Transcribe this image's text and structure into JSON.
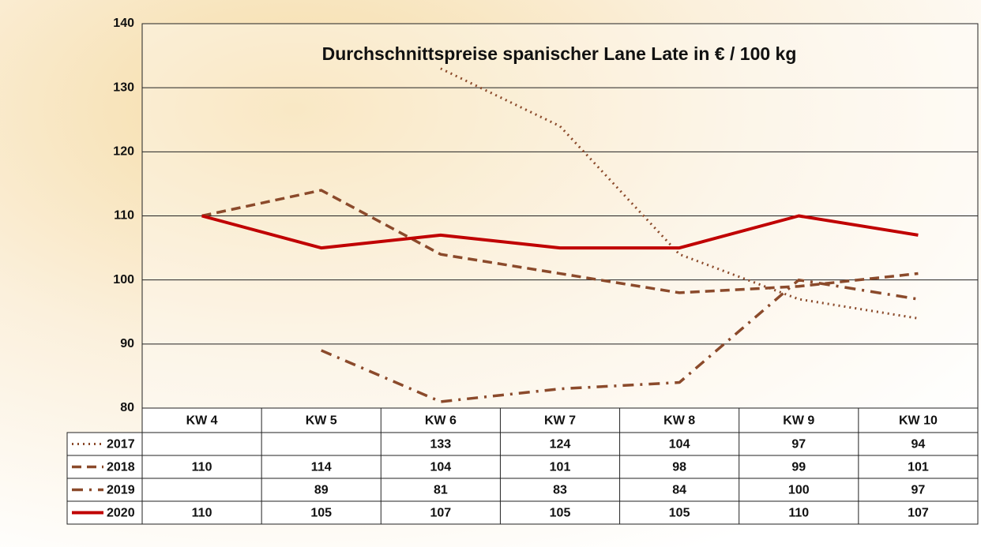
{
  "chart_data": {
    "type": "line",
    "title": "Durchschnittspreise spanischer Lane Late in € / 100 kg",
    "categories": [
      "KW 4",
      "KW 5",
      "KW 6",
      "KW 7",
      "KW 8",
      "KW 9",
      "KW 10"
    ],
    "series": [
      {
        "name": "2017",
        "color": "#8b4a2b",
        "style": "dotted",
        "values": [
          null,
          null,
          133,
          124,
          104,
          97,
          94
        ]
      },
      {
        "name": "2018",
        "color": "#8b4a2b",
        "style": "dashed",
        "values": [
          110,
          114,
          104,
          101,
          98,
          99,
          101
        ]
      },
      {
        "name": "2019",
        "color": "#8b4a2b",
        "style": "dashdot",
        "values": [
          null,
          89,
          81,
          83,
          84,
          100,
          97
        ]
      },
      {
        "name": "2020",
        "color": "#c00000",
        "style": "solid",
        "values": [
          110,
          105,
          107,
          105,
          105,
          110,
          107
        ]
      }
    ],
    "ylim": [
      80,
      140
    ],
    "yticks": [
      80,
      90,
      100,
      110,
      120,
      130,
      140
    ],
    "grid": true
  }
}
